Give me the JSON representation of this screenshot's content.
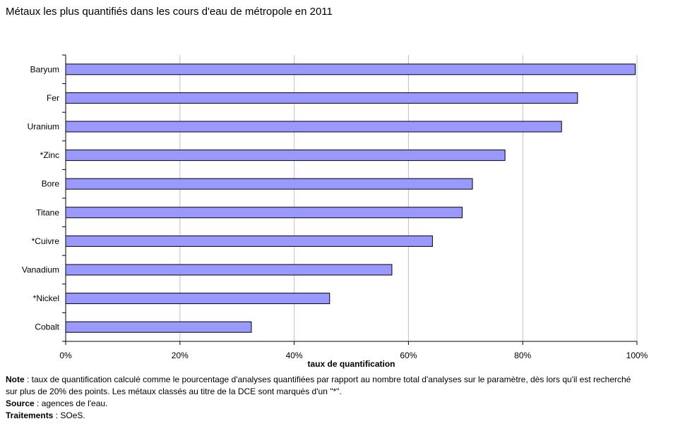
{
  "title": "Métaux les plus quantifiés dans les cours d'eau de métropole en 2011",
  "colors": {
    "bar_fill": "#9999ff",
    "bar_stroke": "#000000",
    "grid": "#c0c0c0"
  },
  "chart_data": {
    "type": "bar",
    "orientation": "horizontal",
    "categories": [
      "Baryum",
      "Fer",
      "Uranium",
      "*Zinc",
      "Bore",
      "Titane",
      "*Cuivre",
      "Vanadium",
      "*Nickel",
      "Cobalt"
    ],
    "values": [
      99.7,
      89.6,
      86.8,
      76.9,
      71.2,
      69.4,
      64.2,
      57.1,
      46.2,
      32.5
    ],
    "xlabel": "taux de quantification",
    "ylabel": "",
    "xlim": [
      0,
      100
    ],
    "xticks": [
      "0%",
      "20%",
      "40%",
      "60%",
      "80%",
      "100%"
    ],
    "grid": true,
    "legend": "none"
  },
  "notes": {
    "note_label": "Note",
    "note_text": " : taux de quantification calculé comme le pourcentage d'analyses quantifiées par rapport au nombre total d'analyses sur le paramètre, dès lors qu'il est recherché sur plus de 20% des points. Les métaux classés au titre de la DCE sont marqués d'un \"*\".",
    "source_label": "Source",
    "source_text": " : agences de l'eau.",
    "traitements_label": "Traitements",
    "traitements_text": " : SOeS."
  }
}
